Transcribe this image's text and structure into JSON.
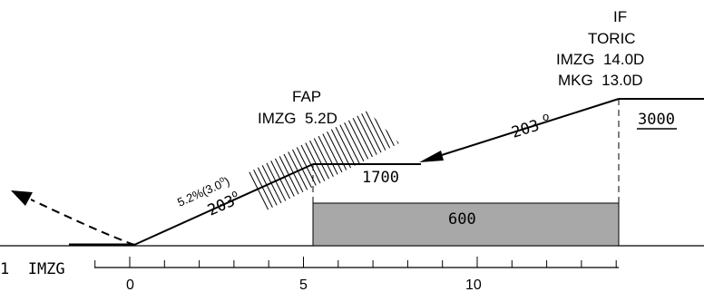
{
  "if_fix": {
    "title": "IF",
    "name": "TORIC",
    "dme_1": "IMZG  14.0D",
    "dme_2": "MKG  13.0D",
    "altitude": "3000"
  },
  "fap_fix": {
    "title": "FAP",
    "dme": "IMZG  5.2D"
  },
  "segments": {
    "initial_course": "203",
    "final_gradient": "5.2%(3.0",
    "final_course": "203",
    "fap_altitude": "1700",
    "ocs_altitude": "600"
  },
  "dme_scale": {
    "station": "1  IMZG",
    "ticks": [
      "0",
      "5",
      "10"
    ]
  },
  "colors": {
    "line": "#000000",
    "obstacle_box": "#a8a8a8",
    "background": "#ffffff"
  }
}
